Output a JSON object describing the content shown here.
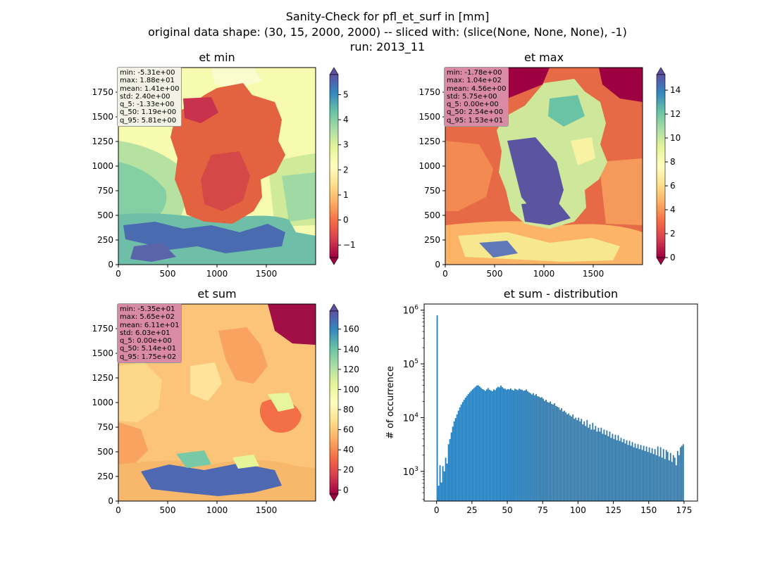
{
  "figure": {
    "title_lines": [
      "Sanity-Check for pfl_et_surf in [mm]",
      "original data shape: (30, 15, 2000, 2000) -- sliced with: (slice(None, None, None), -1)",
      "run: 2013_11"
    ]
  },
  "chart_data": [
    {
      "type": "heatmap",
      "title": "et min",
      "colormap": "Spectral",
      "xlim": [
        0,
        2000
      ],
      "ylim": [
        0,
        2000
      ],
      "xticks": [
        0,
        500,
        1000,
        1500
      ],
      "yticks": [
        0,
        250,
        500,
        750,
        1000,
        1250,
        1500,
        1750
      ],
      "colorbar": {
        "min": -1.5,
        "max": 5.8,
        "ticks": [
          -1,
          0,
          1,
          2,
          3,
          4,
          5
        ],
        "extend": "both"
      },
      "stats_box_color": "#f2f2e6",
      "stats": [
        "min: -5.31e+00",
        "max: 1.88e+01",
        "mean: 1.41e+00",
        "std: 2.40e+00",
        "q_5: -1.33e+00",
        "q_50: 1.19e+00",
        "q_95: 5.81e+00"
      ]
    },
    {
      "type": "heatmap",
      "title": "et max",
      "colormap": "Spectral",
      "xlim": [
        0,
        2000
      ],
      "ylim": [
        0,
        2000
      ],
      "xticks": [
        0,
        500,
        1000,
        1500
      ],
      "yticks": [
        0,
        250,
        500,
        750,
        1000,
        1250,
        1500,
        1750
      ],
      "colorbar": {
        "min": 0,
        "max": 15.3,
        "ticks": [
          0,
          2,
          4,
          6,
          8,
          10,
          12,
          14
        ],
        "extend": "both"
      },
      "stats_box_color": "#d98aa5",
      "stats": [
        "min: -1.78e+00",
        "max: 1.04e+02",
        "mean: 4.56e+00",
        "std: 5.75e+00",
        "q_5: 0.00e+00",
        "q_50: 2.54e+00",
        "q_95: 1.53e+01"
      ]
    },
    {
      "type": "heatmap",
      "title": "et sum",
      "colormap": "Spectral",
      "xlim": [
        0,
        2000
      ],
      "ylim": [
        0,
        2000
      ],
      "xticks": [
        0,
        500,
        1000,
        1500
      ],
      "yticks": [
        0,
        250,
        500,
        750,
        1000,
        1250,
        1500,
        1750
      ],
      "colorbar": {
        "min": -4,
        "max": 178,
        "ticks": [
          0,
          20,
          40,
          60,
          80,
          100,
          120,
          140,
          160
        ],
        "extend": "both"
      },
      "stats_box_color": "#d98aa5",
      "stats": [
        "min: -5.35e+01",
        "max: 5.65e+02",
        "mean: 6.11e+01",
        "std: 6.03e+01",
        "q_5: 0.00e+00",
        "q_50: 5.14e+01",
        "q_95: 1.75e+02"
      ]
    },
    {
      "type": "bar",
      "title": "et sum - distribution",
      "ylabel": "# of occurrence",
      "yscale": "log",
      "xlim": [
        -8.8,
        184.5
      ],
      "ylim": [
        280,
        1300000
      ],
      "xticks": [
        0,
        25,
        50,
        75,
        100,
        125,
        150,
        175
      ],
      "color": "#1f77b4",
      "bin_width": 0.875,
      "bins": [
        [
          0,
          800000
        ],
        [
          1,
          540
        ],
        [
          2,
          1300
        ],
        [
          3,
          620
        ],
        [
          4,
          1250
        ],
        [
          5,
          1000
        ],
        [
          6,
          1800
        ],
        [
          7,
          1400
        ],
        [
          8,
          3200
        ],
        [
          9,
          4000
        ],
        [
          10,
          5300
        ],
        [
          11,
          6800
        ],
        [
          12,
          8500
        ],
        [
          13,
          9800
        ],
        [
          14,
          11500
        ],
        [
          15,
          13500
        ],
        [
          16,
          15500
        ],
        [
          17,
          17500
        ],
        [
          18,
          19500
        ],
        [
          19,
          21500
        ],
        [
          20,
          23500
        ],
        [
          21,
          25500
        ],
        [
          22,
          27500
        ],
        [
          23,
          29500
        ],
        [
          24,
          31500
        ],
        [
          25,
          33500
        ],
        [
          26,
          35500
        ],
        [
          27,
          37500
        ],
        [
          28,
          39500
        ],
        [
          29,
          40000
        ],
        [
          30,
          38000
        ],
        [
          31,
          36000
        ],
        [
          32,
          34000
        ],
        [
          33,
          33000
        ],
        [
          34,
          31500
        ],
        [
          35,
          33500
        ],
        [
          36,
          35500
        ],
        [
          37,
          33000
        ],
        [
          38,
          32000
        ],
        [
          39,
          31000
        ],
        [
          40,
          33500
        ],
        [
          41,
          32500
        ],
        [
          42,
          35500
        ],
        [
          43,
          37500
        ],
        [
          44,
          36500
        ],
        [
          45,
          39500
        ],
        [
          46,
          37000
        ],
        [
          47,
          35000
        ],
        [
          48,
          34500
        ],
        [
          49,
          33000
        ],
        [
          50,
          34000
        ],
        [
          51,
          33500
        ],
        [
          52,
          35000
        ],
        [
          53,
          33000
        ],
        [
          54,
          32000
        ],
        [
          55,
          34500
        ],
        [
          56,
          33500
        ],
        [
          57,
          32500
        ],
        [
          58,
          34500
        ],
        [
          59,
          33500
        ],
        [
          60,
          33000
        ],
        [
          61,
          31500
        ],
        [
          62,
          32000
        ],
        [
          63,
          33500
        ],
        [
          64,
          31000
        ],
        [
          65,
          29500
        ],
        [
          66,
          28500
        ],
        [
          67,
          27000
        ],
        [
          68,
          28500
        ],
        [
          69,
          26000
        ],
        [
          70,
          27500
        ],
        [
          71,
          25000
        ],
        [
          72,
          24500
        ],
        [
          73,
          23500
        ],
        [
          74,
          24000
        ],
        [
          75,
          22500
        ],
        [
          76,
          20500
        ],
        [
          77,
          21500
        ],
        [
          78,
          19500
        ],
        [
          79,
          19000
        ],
        [
          80,
          20000
        ],
        [
          81,
          18000
        ],
        [
          82,
          17500
        ],
        [
          83,
          18500
        ],
        [
          84,
          16500
        ],
        [
          85,
          16000
        ],
        [
          86,
          15500
        ],
        [
          87,
          14000
        ],
        [
          88,
          15000
        ],
        [
          89,
          13000
        ],
        [
          90,
          13500
        ],
        [
          91,
          12500
        ],
        [
          92,
          11500
        ],
        [
          93,
          12000
        ],
        [
          94,
          11000
        ],
        [
          95,
          10500
        ],
        [
          96,
          11500
        ],
        [
          97,
          9500
        ],
        [
          98,
          10000
        ],
        [
          99,
          9000
        ],
        [
          100,
          10000
        ],
        [
          101,
          8500
        ],
        [
          102,
          9500
        ],
        [
          103,
          7500
        ],
        [
          104,
          8500
        ],
        [
          105,
          7000
        ],
        [
          106,
          9000
        ],
        [
          107,
          6500
        ],
        [
          108,
          7500
        ],
        [
          109,
          6000
        ],
        [
          110,
          8000
        ],
        [
          111,
          6000
        ],
        [
          112,
          7000
        ],
        [
          113,
          5500
        ],
        [
          114,
          6500
        ],
        [
          115,
          5500
        ],
        [
          116,
          6500
        ],
        [
          117,
          5000
        ],
        [
          118,
          6000
        ],
        [
          119,
          4800
        ],
        [
          120,
          5800
        ],
        [
          121,
          4500
        ],
        [
          122,
          5500
        ],
        [
          123,
          4200
        ],
        [
          124,
          5000
        ],
        [
          125,
          4000
        ],
        [
          126,
          4800
        ],
        [
          127,
          3800
        ],
        [
          128,
          4700
        ],
        [
          129,
          3700
        ],
        [
          130,
          4200
        ],
        [
          131,
          3500
        ],
        [
          132,
          4000
        ],
        [
          133,
          3300
        ],
        [
          134,
          3800
        ],
        [
          135,
          3100
        ],
        [
          136,
          3700
        ],
        [
          137,
          3000
        ],
        [
          138,
          3500
        ],
        [
          139,
          2800
        ],
        [
          140,
          3300
        ],
        [
          141,
          2700
        ],
        [
          142,
          3200
        ],
        [
          143,
          2600
        ],
        [
          144,
          3100
        ],
        [
          145,
          2500
        ],
        [
          146,
          3000
        ],
        [
          147,
          2400
        ],
        [
          148,
          2900
        ],
        [
          149,
          2300
        ],
        [
          150,
          2800
        ],
        [
          151,
          2200
        ],
        [
          152,
          2700
        ],
        [
          153,
          2100
        ],
        [
          154,
          2600
        ],
        [
          155,
          2000
        ],
        [
          156,
          2900
        ],
        [
          157,
          1900
        ],
        [
          158,
          2800
        ],
        [
          159,
          1800
        ],
        [
          160,
          2600
        ],
        [
          161,
          1700
        ],
        [
          162,
          2500
        ],
        [
          163,
          2300
        ],
        [
          164,
          1600
        ],
        [
          165,
          2200
        ],
        [
          166,
          1500
        ],
        [
          167,
          2000
        ],
        [
          168,
          1800
        ],
        [
          169,
          1300
        ],
        [
          170,
          2400
        ],
        [
          171,
          2000
        ],
        [
          172,
          2800
        ],
        [
          173,
          3000
        ],
        [
          174,
          3200
        ]
      ]
    }
  ]
}
